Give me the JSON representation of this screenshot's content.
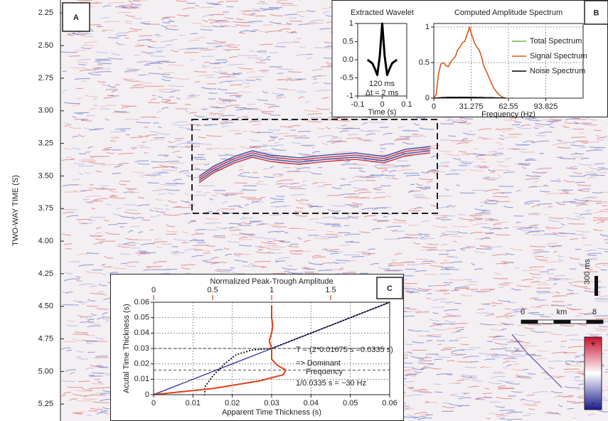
{
  "chart_data": [
    {
      "type": "seismic",
      "panel_label": "A",
      "ylabel": "TWO-WAY TIME (S)",
      "ylim": [
        2.15,
        5.38
      ],
      "yticks": [
        2.25,
        {
          "value": 2.5,
          "label": "2.50"
        },
        2.75,
        {
          "value": 3,
          "label": "3.00"
        },
        3.25,
        {
          "value": 3.5,
          "label": "3.50"
        },
        3.75,
        {
          "value": 4,
          "label": "4.00"
        },
        4.25,
        {
          "value": 4.5,
          "label": "4.50"
        },
        4.75,
        {
          "value": 5,
          "label": "5.00"
        },
        5.25
      ],
      "time_scale_label": "300 ms",
      "distance_scale": {
        "unit": "km",
        "ticks": [
          0,
          8
        ]
      },
      "colorbar_labels": [
        "+",
        "-"
      ]
    },
    {
      "type": "line",
      "panel_label": "B",
      "title": "Extracted Wavelet",
      "xlabel": "Time (s)",
      "xlim": [
        -0.1,
        0.1
      ],
      "xticks": [
        -0.1,
        0,
        0.1
      ],
      "ylim": [
        -1,
        1
      ],
      "yticks": [
        -1,
        -0.5,
        {
          "value": 0,
          "label": "0.0"
        },
        0.5,
        1
      ],
      "annotations": [
        "120 ms",
        "Δt = 2 ms"
      ],
      "x": [
        -0.06,
        -0.05,
        -0.04,
        -0.03,
        -0.02,
        -0.01,
        0,
        0.01,
        0.02,
        0.03,
        0.04,
        0.05,
        0.06
      ],
      "series": [
        {
          "color": "#000000",
          "line_width": 3,
          "values": [
            0,
            -0.05,
            -0.1,
            -0.25,
            -0.42,
            0.1,
            1,
            0.1,
            -0.42,
            -0.25,
            -0.1,
            -0.05,
            0
          ]
        }
      ]
    },
    {
      "type": "line",
      "title": "Computed Amplitude Spectrum",
      "xlabel": "Frequency (Hz)",
      "xlim": [
        0,
        125.1
      ],
      "xticks": [
        0,
        31.275,
        62.55,
        93.825
      ],
      "ylim": [
        0,
        1.05
      ],
      "yticks": [
        0,
        0.5,
        1
      ],
      "grid": true,
      "legend": "upper right",
      "x": [
        0,
        2,
        4,
        6,
        8,
        10,
        12,
        14,
        16,
        18,
        20,
        22,
        24,
        26,
        28,
        30,
        32,
        34,
        36,
        38,
        40,
        42,
        44,
        46,
        48,
        50,
        52,
        54,
        56,
        58,
        60
      ],
      "series": [
        {
          "name": "Total Spectrum",
          "color": "#5fbf3f",
          "line_width": 1.5,
          "values": [
            0,
            0.05,
            0.35,
            0.48,
            0.5,
            0.46,
            0.44,
            0.5,
            0.55,
            0.58,
            0.68,
            0.72,
            0.78,
            0.8,
            0.9,
            1.0,
            0.88,
            0.78,
            0.72,
            0.68,
            0.58,
            0.45,
            0.38,
            0.3,
            0.22,
            0.15,
            0.1,
            0.06,
            0.03,
            0.01,
            0
          ]
        },
        {
          "name": "Signal Spectrum",
          "color": "#e8541c",
          "line_width": 1.5,
          "values": [
            0,
            0.05,
            0.35,
            0.48,
            0.5,
            0.46,
            0.44,
            0.5,
            0.55,
            0.58,
            0.68,
            0.72,
            0.78,
            0.8,
            0.9,
            1.0,
            0.88,
            0.78,
            0.72,
            0.68,
            0.58,
            0.45,
            0.38,
            0.3,
            0.22,
            0.15,
            0.1,
            0.06,
            0.03,
            0.01,
            0
          ]
        },
        {
          "name": "Noise Spectrum",
          "color": "#000000",
          "line_width": 1.5,
          "values": [
            0,
            0,
            0.005,
            0.008,
            0.01,
            0.01,
            0.012,
            0.012,
            0.012,
            0.013,
            0.013,
            0.013,
            0.012,
            0.012,
            0.012,
            0.012,
            0.011,
            0.011,
            0.01,
            0.01,
            0.01,
            0.009,
            0.008,
            0.008,
            0.007,
            0.006,
            0.005,
            0.004,
            0.003,
            0.002,
            0
          ]
        }
      ]
    },
    {
      "type": "line",
      "panel_label": "C",
      "title": "Normalized Peak-Trough Amplitude",
      "xlabel": "Apparent Time Thickness (s)",
      "ylabel": "Acutal Time Thickness (s)",
      "xlim": [
        0,
        0.06
      ],
      "xticks": [
        0,
        0.01,
        0.02,
        0.03,
        0.04,
        0.05,
        0.06
      ],
      "ylim": [
        0,
        0.06
      ],
      "yticks": [
        0,
        0.01,
        0.02,
        0.03,
        0.04,
        0.05,
        0.06
      ],
      "x2lim": [
        0,
        2
      ],
      "x2ticks": [
        0,
        0.5,
        1,
        1.5
      ],
      "x2_color": "#e0401a",
      "grid": true,
      "hlines": [
        0.016,
        0.03
      ],
      "annotations": [
        "T = (2*0.01675 s =0.0335 s)",
        "=> Dominant",
        "Frequency",
        "1/0.0335 s = ~30 Hz"
      ],
      "series": [
        {
          "color": "#4b3fa6",
          "line_width": 1.5,
          "x": [
            0,
            0.06
          ],
          "values": [
            0,
            0.06
          ]
        },
        {
          "color": "#000000",
          "style": "dotted",
          "line_width": 2,
          "x": [
            0.013,
            0.013,
            0.015,
            0.018,
            0.021,
            0.025,
            0.03,
            0.035,
            0.04,
            0.045,
            0.05,
            0.055,
            0.06
          ],
          "values": [
            0,
            0.005,
            0.012,
            0.02,
            0.026,
            0.029,
            0.03,
            0.035,
            0.04,
            0.045,
            0.05,
            0.055,
            0.06
          ]
        },
        {
          "color": "#e0401a",
          "axis": "x2",
          "line_width": 2,
          "x": [
            0,
            0.5,
            0.9,
            1.1,
            1.12,
            1.05,
            1.0,
            1.0,
            0.98,
            1.0,
            1.01,
            1.0,
            1.0,
            1.0
          ],
          "values": [
            0,
            0.004,
            0.009,
            0.013,
            0.016,
            0.019,
            0.023,
            0.03,
            0.035,
            0.04,
            0.045,
            0.05,
            0.055,
            0.058
          ]
        }
      ]
    }
  ]
}
